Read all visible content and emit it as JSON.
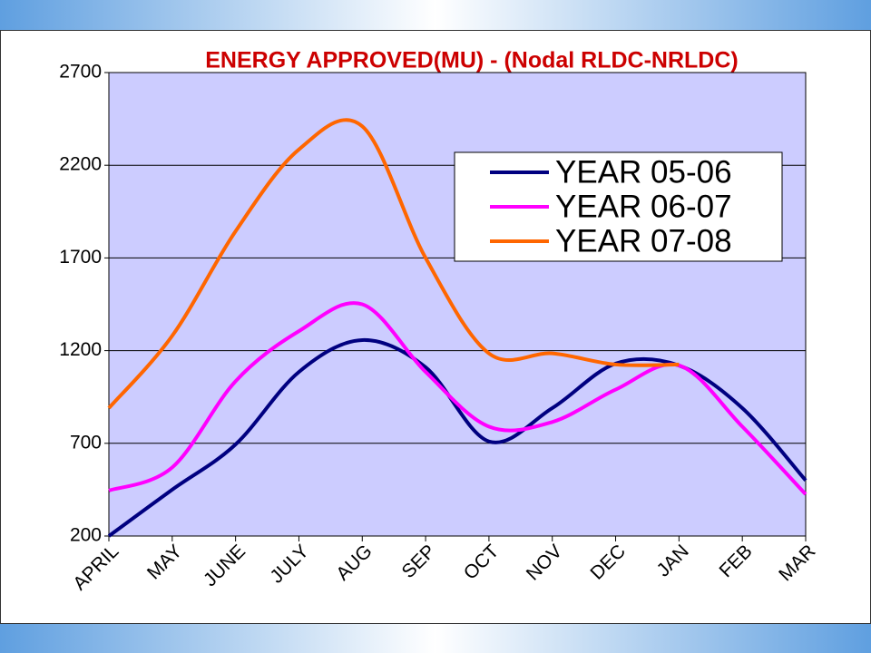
{
  "chart_data": {
    "type": "line",
    "title": "ENERGY APPROVED(MU) - (Nodal RLDC-NRLDC)",
    "categories": [
      "APRIL",
      "MAY",
      "JUNE",
      "JULY",
      "AUG",
      "SEP",
      "OCT",
      "NOV",
      "DEC",
      "JAN",
      "FEB",
      "MAR"
    ],
    "series": [
      {
        "name": "YEAR 05-06",
        "color": "#000080",
        "values": [
          200,
          450,
          694,
          1085,
          1257,
          1110,
          710,
          890,
          1130,
          1120,
          890,
          500
        ]
      },
      {
        "name": "YEAR 06-07",
        "color": "#ff00ff",
        "values": [
          445,
          570,
          1035,
          1305,
          1450,
          1085,
          790,
          815,
          990,
          1120,
          790,
          425
        ]
      },
      {
        "name": "YEAR 07-08",
        "color": "#ff6600",
        "values": [
          890,
          1280,
          1844,
          2285,
          2410,
          1700,
          1185,
          1185,
          1125,
          1125,
          null,
          null
        ]
      }
    ],
    "ylim": [
      200,
      2700
    ],
    "yticks": [
      200,
      700,
      1200,
      1700,
      2200,
      2700
    ],
    "grid": true,
    "legend": "top-right"
  }
}
